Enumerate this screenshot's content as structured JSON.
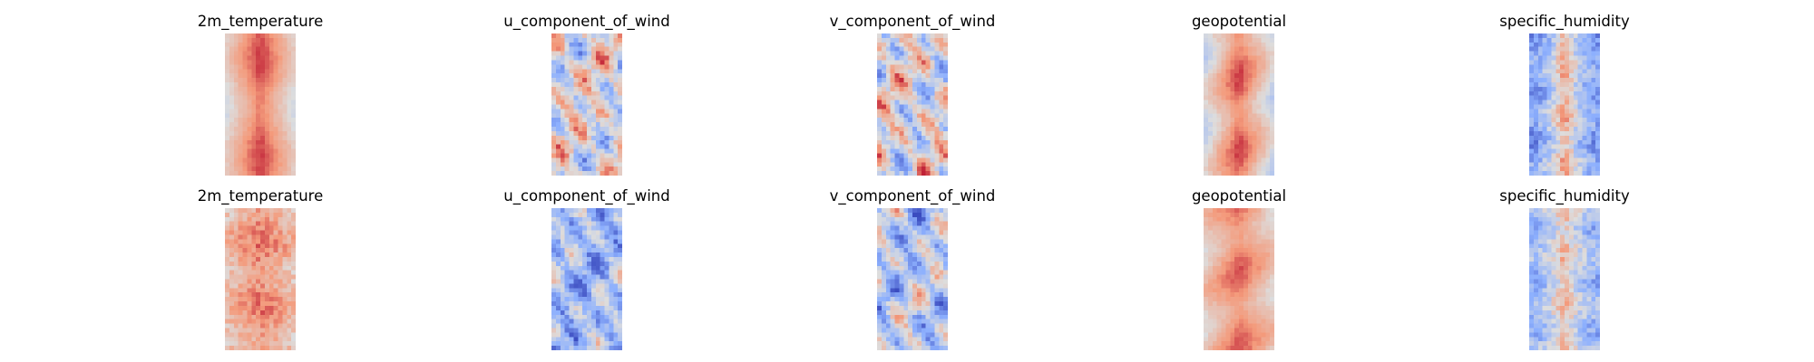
{
  "figure": {
    "colormap": "coolwarm",
    "colormap_stops": [
      "#3b4cc0",
      "#8db0fe",
      "#dddddd",
      "#f49a7b",
      "#b40426"
    ],
    "axes_visible": false,
    "rows": 2,
    "columns": 5
  },
  "chart_data": [
    {
      "type": "heatmap",
      "row": 1,
      "col": 1,
      "title": "2m_temperature",
      "field": "temperature",
      "mean": 0.62,
      "amplitude": 0.25
    },
    {
      "type": "heatmap",
      "row": 1,
      "col": 2,
      "title": "u_component_of_wind",
      "field": "wind",
      "mean": 0.5,
      "amplitude": 0.35
    },
    {
      "type": "heatmap",
      "row": 1,
      "col": 3,
      "title": "v_component_of_wind",
      "field": "wind",
      "mean": 0.5,
      "amplitude": 0.38
    },
    {
      "type": "heatmap",
      "row": 1,
      "col": 4,
      "title": "geopotential",
      "field": "geopotential",
      "mean": 0.6,
      "amplitude": 0.3
    },
    {
      "type": "heatmap",
      "row": 1,
      "col": 5,
      "title": "specific_humidity",
      "field": "humidity",
      "mean": 0.3,
      "amplitude": 0.4
    },
    {
      "type": "heatmap",
      "row": 2,
      "col": 1,
      "title": "2m_temperature",
      "field": "temperature_noise",
      "mean": 0.68,
      "amplitude": 0.15
    },
    {
      "type": "heatmap",
      "row": 2,
      "col": 2,
      "title": "u_component_of_wind",
      "field": "wind",
      "mean": 0.32,
      "amplitude": 0.3
    },
    {
      "type": "heatmap",
      "row": 2,
      "col": 3,
      "title": "v_component_of_wind",
      "field": "wind",
      "mean": 0.38,
      "amplitude": 0.35
    },
    {
      "type": "heatmap",
      "row": 2,
      "col": 4,
      "title": "geopotential",
      "field": "geopotential",
      "mean": 0.66,
      "amplitude": 0.18
    },
    {
      "type": "heatmap",
      "row": 2,
      "col": 5,
      "title": "specific_humidity",
      "field": "humidity",
      "mean": 0.36,
      "amplitude": 0.28
    }
  ]
}
